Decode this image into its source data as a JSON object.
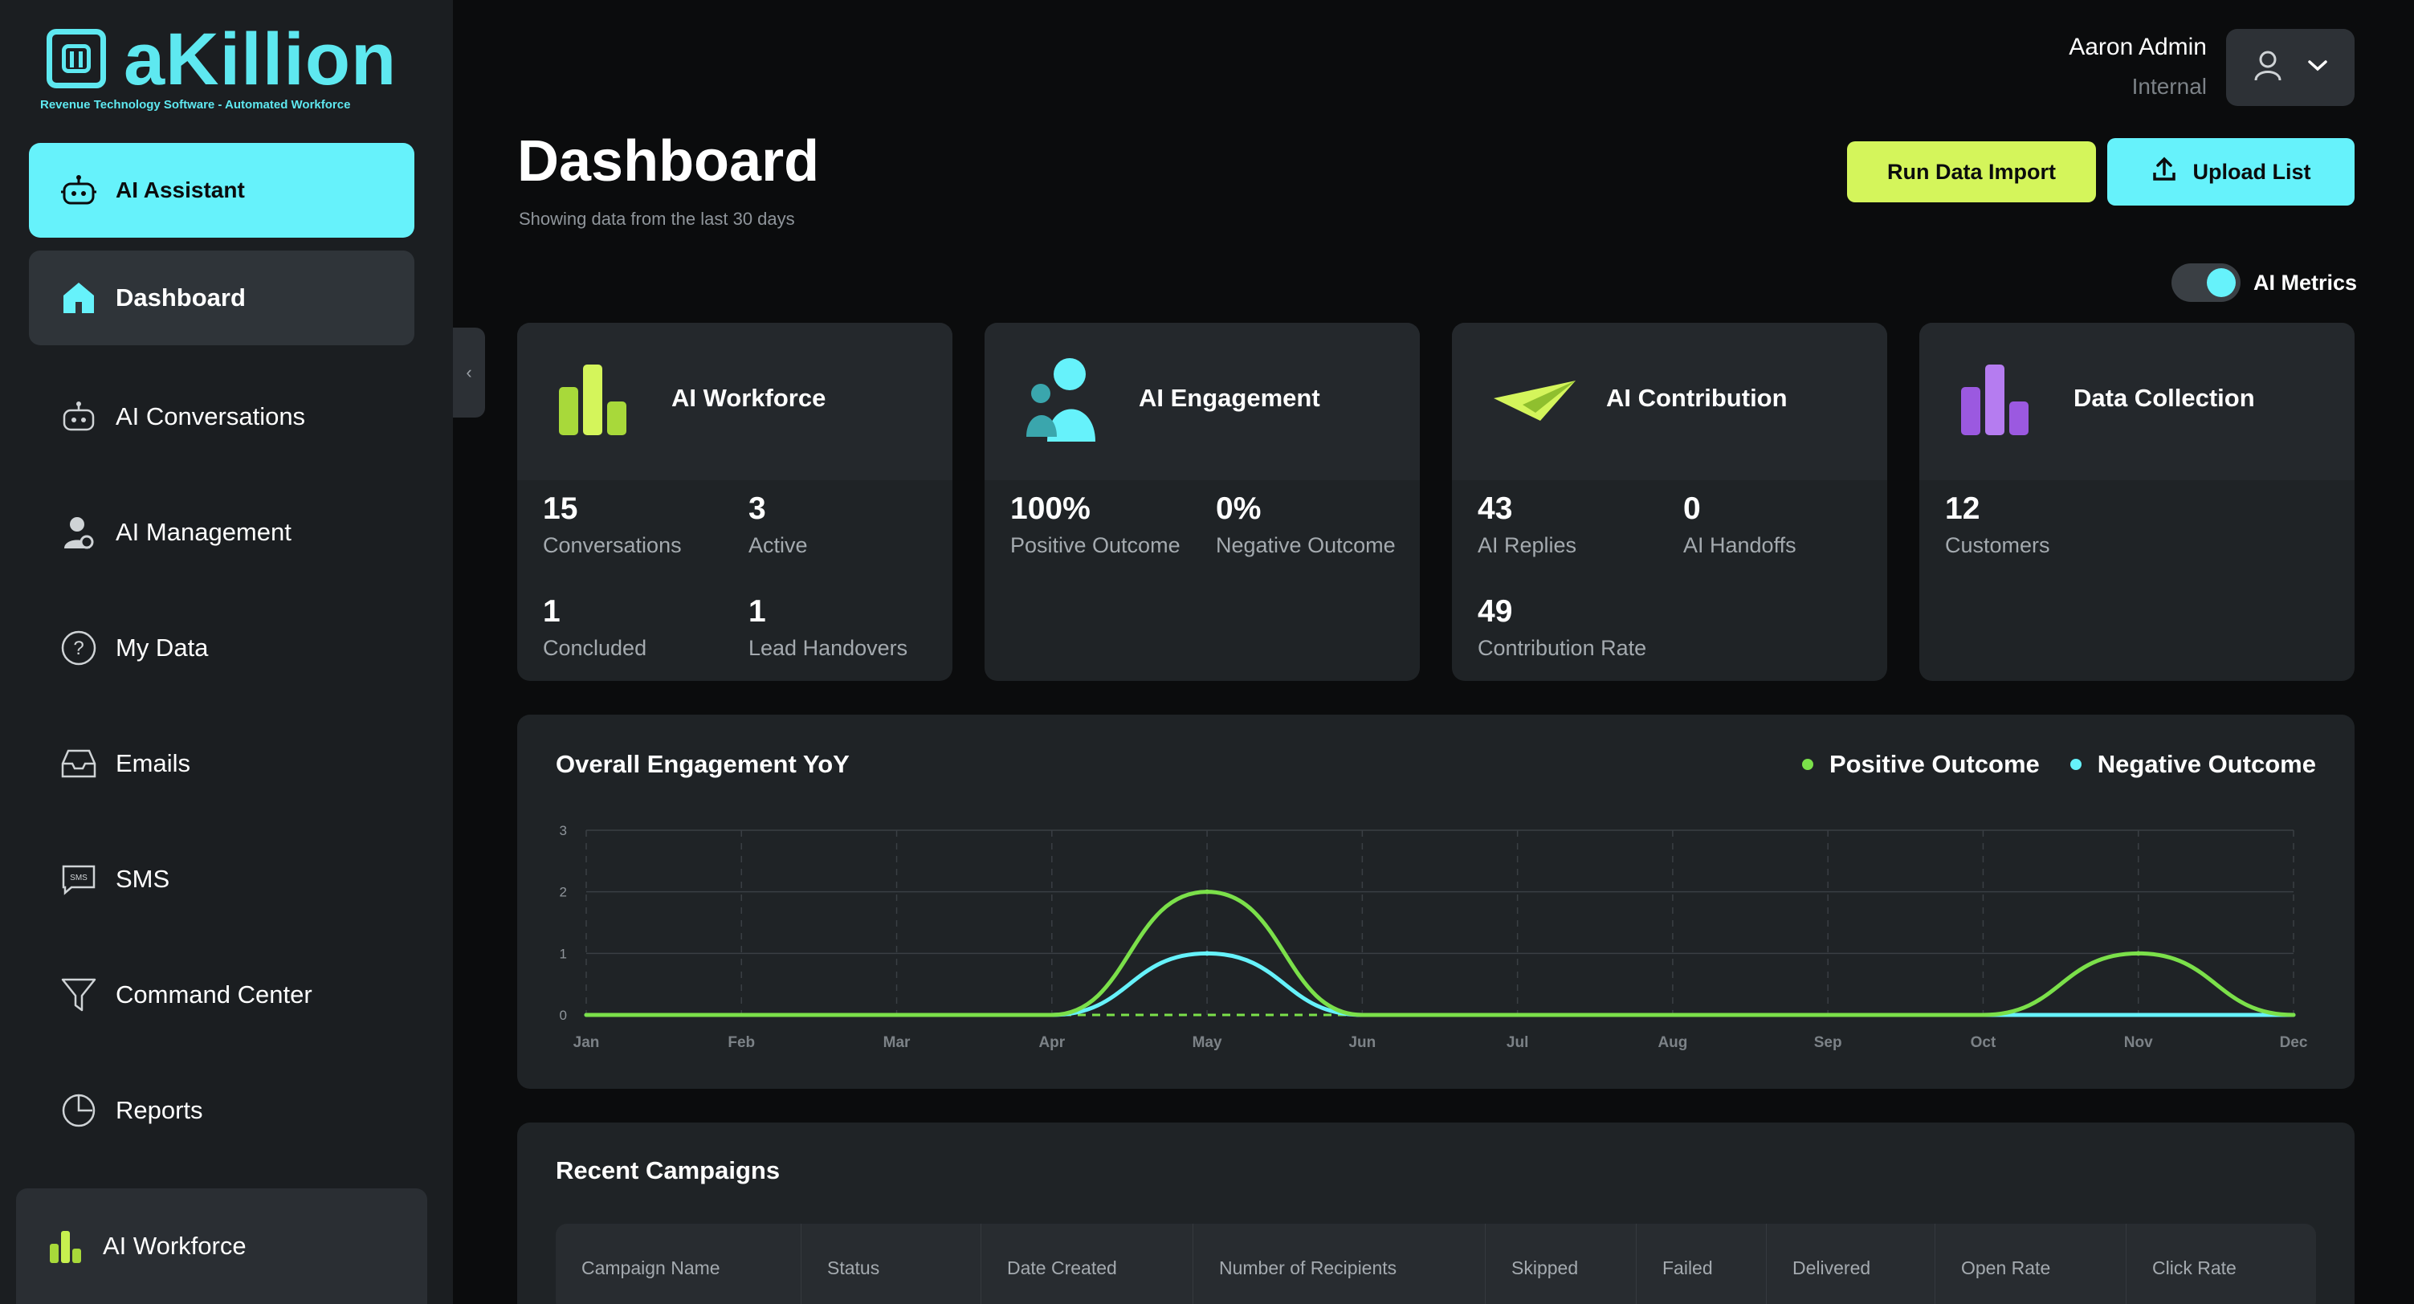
{
  "brand": {
    "name": "aKillion",
    "tagline": "Revenue Technology Software - Automated Workforce",
    "color": "#5ee8f0"
  },
  "sidebar": {
    "assistant_label": "AI Assistant",
    "items": [
      {
        "label": "Dashboard",
        "icon": "home-icon"
      },
      {
        "label": "AI Conversations",
        "icon": "robot-icon"
      },
      {
        "label": "AI Management",
        "icon": "user-gear-icon"
      },
      {
        "label": "My Data",
        "icon": "question-circle-icon"
      },
      {
        "label": "Emails",
        "icon": "inbox-icon"
      },
      {
        "label": "SMS",
        "icon": "sms-icon"
      },
      {
        "label": "Command Center",
        "icon": "filter-icon"
      },
      {
        "label": "Reports",
        "icon": "pie-chart-icon"
      }
    ],
    "workforce_label": "AI Workforce"
  },
  "header": {
    "title": "Dashboard",
    "subtitle": "Showing data from the last 30 days",
    "user_name": "Aaron Admin",
    "user_role": "Internal",
    "run_import_label": "Run Data Import",
    "upload_label": "Upload List",
    "toggle_label": "AI Metrics",
    "toggle_on": true
  },
  "cards": [
    {
      "title": "AI Workforce",
      "stats": [
        {
          "value": "15",
          "label": "Conversations"
        },
        {
          "value": "3",
          "label": "Active"
        },
        {
          "value": "1",
          "label": "Concluded"
        },
        {
          "value": "1",
          "label": "Lead Handovers"
        }
      ]
    },
    {
      "title": "AI Engagement",
      "stats": [
        {
          "value": "100%",
          "label": "Positive Outcome"
        },
        {
          "value": "0%",
          "label": "Negative Outcome"
        }
      ]
    },
    {
      "title": "AI Contribution",
      "stats": [
        {
          "value": "43",
          "label": "AI Replies"
        },
        {
          "value": "0",
          "label": "AI Handoffs"
        },
        {
          "value": "49",
          "label": "Contribution Rate"
        }
      ]
    },
    {
      "title": "Data Collection",
      "stats": [
        {
          "value": "12",
          "label": "Customers"
        }
      ]
    }
  ],
  "chart_data": {
    "type": "line",
    "title": "Overall Engagement YoY",
    "categories": [
      "Jan",
      "Feb",
      "Mar",
      "Apr",
      "May",
      "Jun",
      "Jul",
      "Aug",
      "Sep",
      "Oct",
      "Nov",
      "Dec"
    ],
    "series": [
      {
        "name": "Positive Outcome",
        "color": "#7be04a",
        "values": [
          0,
          0,
          0,
          0,
          2,
          0,
          0,
          0,
          0,
          0,
          1,
          0
        ]
      },
      {
        "name": "Negative Outcome",
        "color": "#66f2fb",
        "values": [
          0,
          0,
          0,
          0,
          1,
          0,
          0,
          0,
          0,
          0,
          0,
          0
        ]
      }
    ],
    "ylim": [
      0,
      3
    ],
    "yticks": [
      "0",
      "1",
      "2",
      "3"
    ],
    "legend": "top-right",
    "grid": true
  },
  "table": {
    "title": "Recent Campaigns",
    "columns": [
      "Campaign Name",
      "Status",
      "Date Created",
      "Number of Recipients",
      "Skipped",
      "Failed",
      "Delivered",
      "Open Rate",
      "Click Rate"
    ]
  }
}
